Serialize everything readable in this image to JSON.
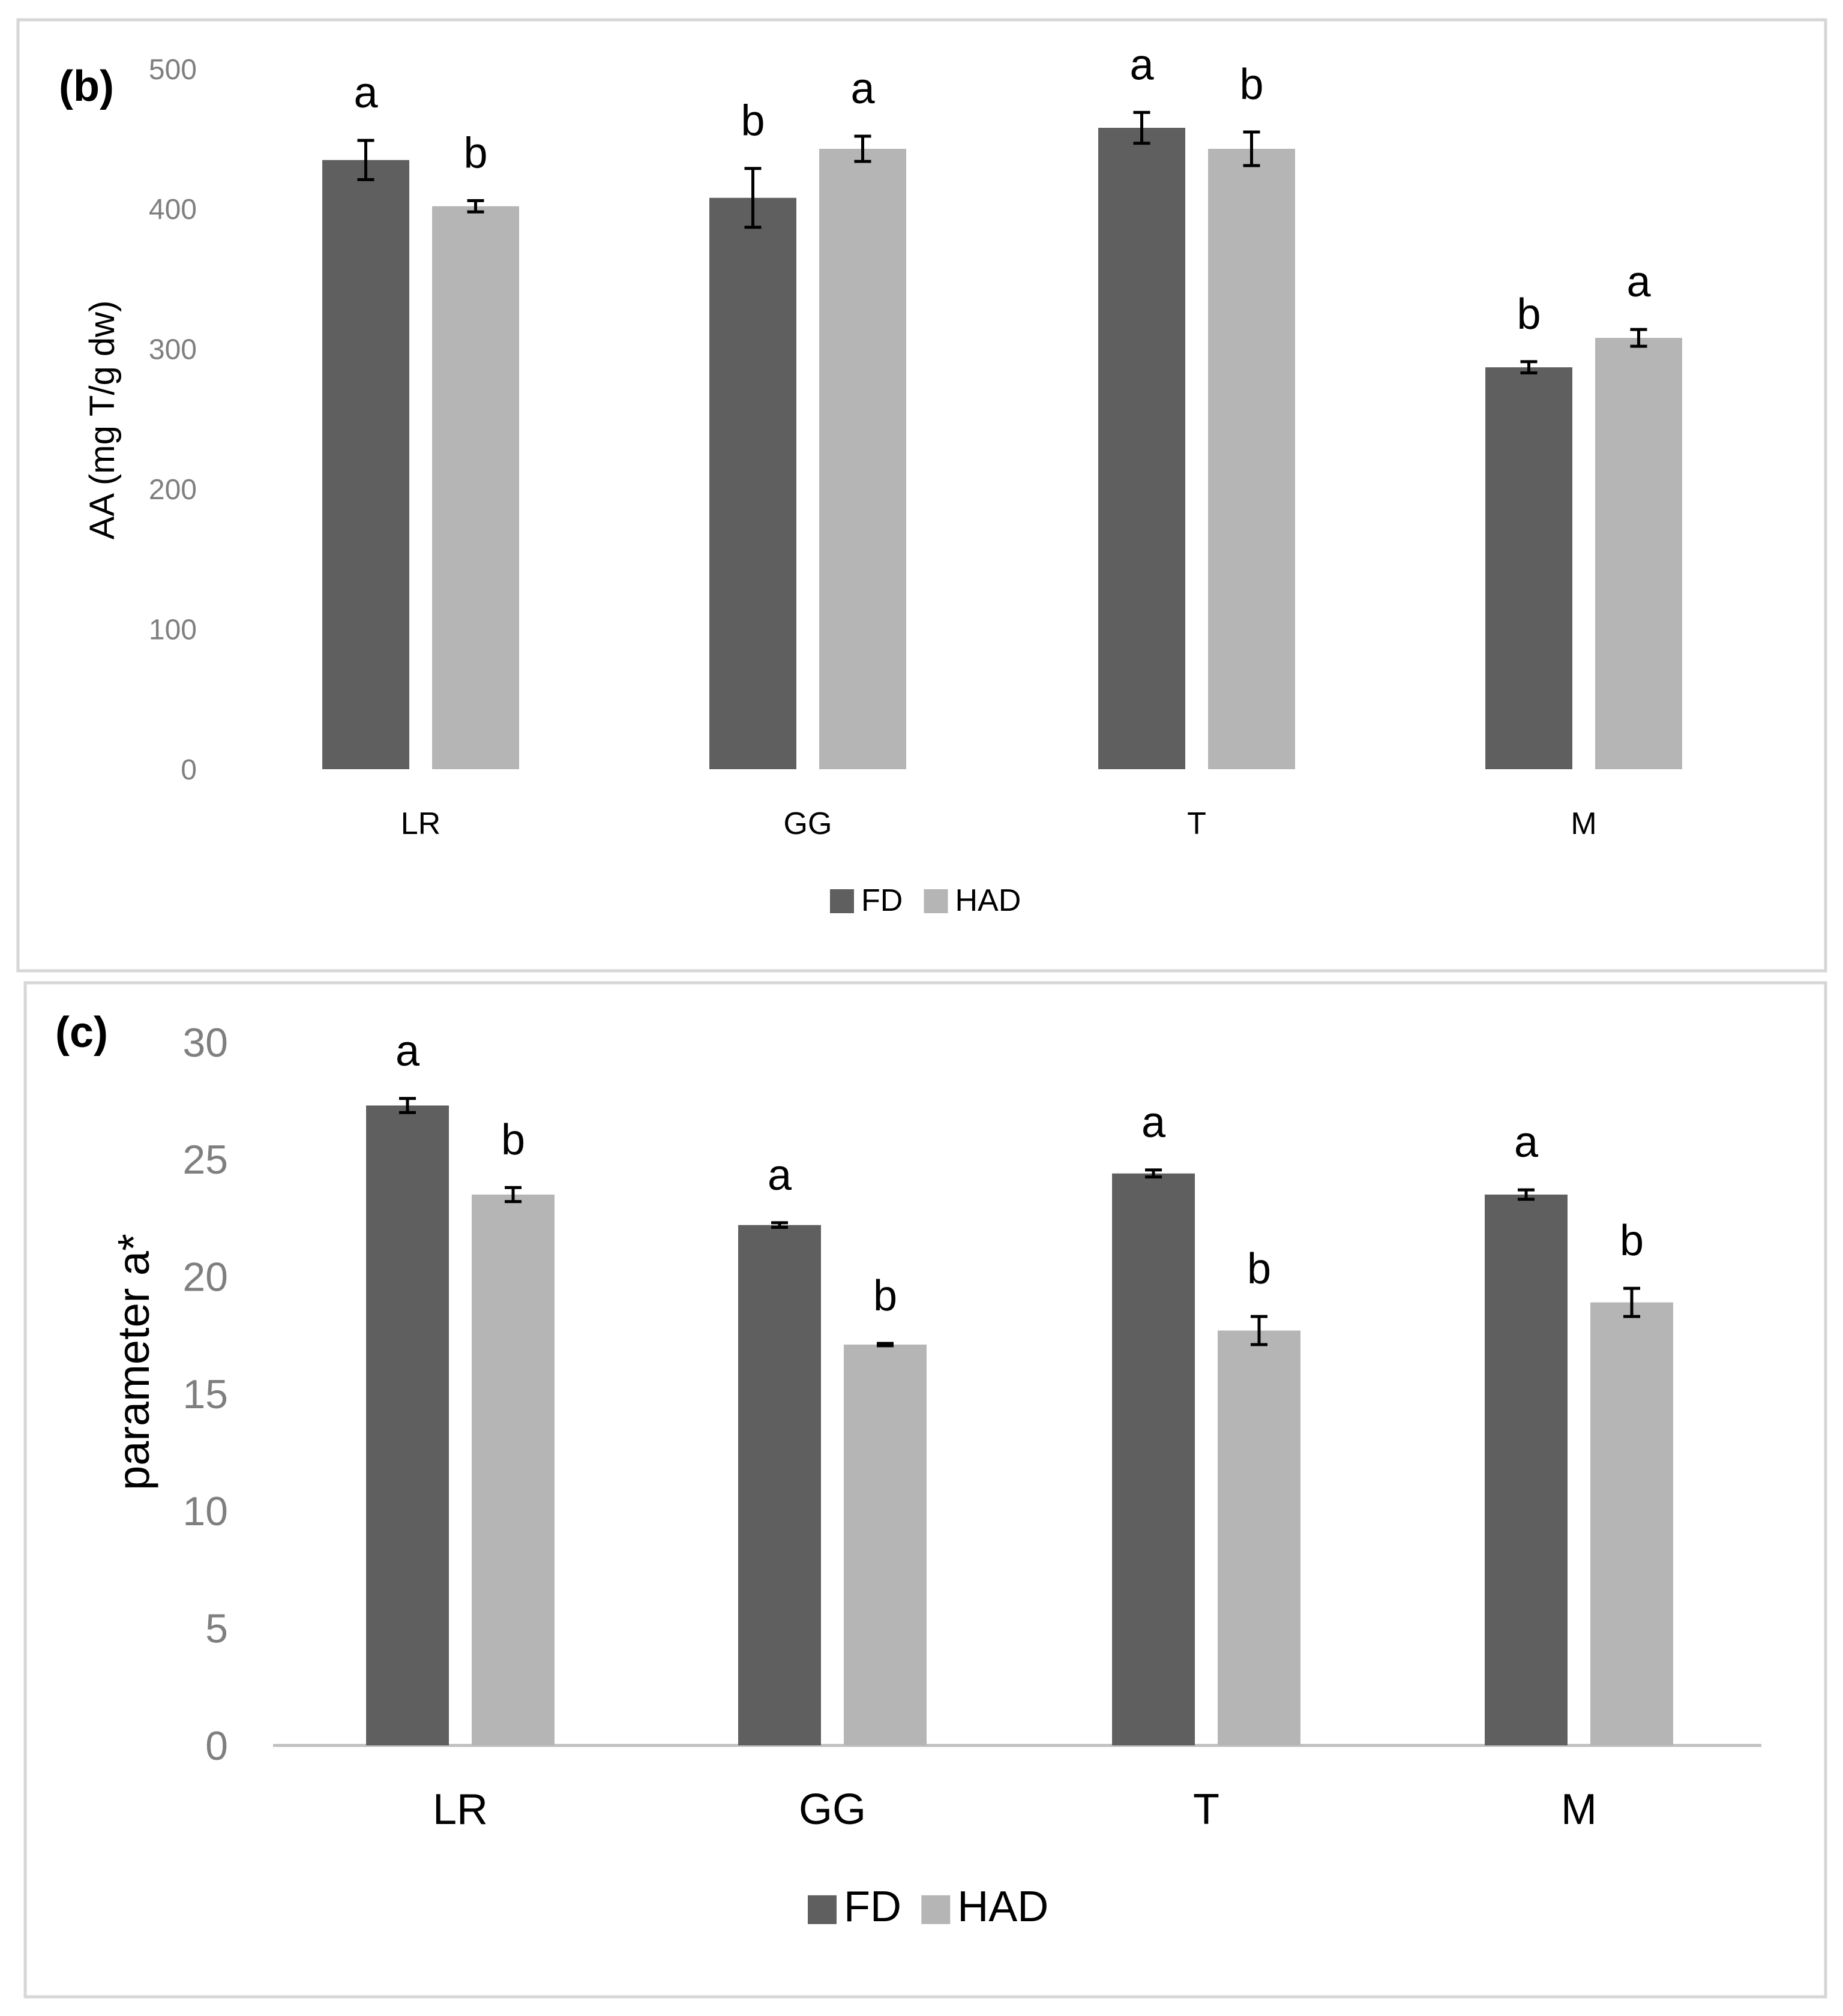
{
  "chart_data": [
    {
      "type": "bar",
      "panel_label": "(b)",
      "categories": [
        "LR",
        "GG",
        "T",
        "M"
      ],
      "ylabel": "AA (mg T/g dw)",
      "ylim": [
        0,
        500
      ],
      "yticks": [
        0,
        100,
        200,
        300,
        400,
        500
      ],
      "grid": false,
      "legend_position": "bottom-center",
      "series": [
        {
          "name": "FD",
          "color": "#5f5f5f",
          "values": [
            435,
            408,
            458,
            287
          ],
          "errors": [
            14,
            21,
            11,
            4
          ],
          "letters": [
            "a",
            "b",
            "a",
            "b"
          ]
        },
        {
          "name": "HAD",
          "color": "#b5b5b5",
          "values": [
            402,
            443,
            443,
            308
          ],
          "errors": [
            4,
            9,
            12,
            6
          ],
          "letters": [
            "b",
            "a",
            "b",
            "a"
          ]
        }
      ]
    },
    {
      "type": "bar",
      "panel_label": "(c)",
      "categories": [
        "LR",
        "GG",
        "T",
        "M"
      ],
      "ylabel": "parameter a*",
      "ylim": [
        0,
        30
      ],
      "yticks": [
        0,
        5,
        10,
        15,
        20,
        25,
        30
      ],
      "grid": false,
      "legend_position": "bottom-center",
      "series": [
        {
          "name": "FD",
          "color": "#5f5f5f",
          "values": [
            27.3,
            22.2,
            24.4,
            23.5
          ],
          "errors": [
            0.3,
            0.1,
            0.15,
            0.2
          ],
          "letters": [
            "a",
            "a",
            "a",
            "a"
          ]
        },
        {
          "name": "HAD",
          "color": "#b5b5b5",
          "values": [
            23.5,
            17.1,
            17.7,
            18.9
          ],
          "errors": [
            0.3,
            0.05,
            0.6,
            0.6
          ],
          "letters": [
            "b",
            "b",
            "b",
            "b"
          ]
        }
      ]
    }
  ]
}
